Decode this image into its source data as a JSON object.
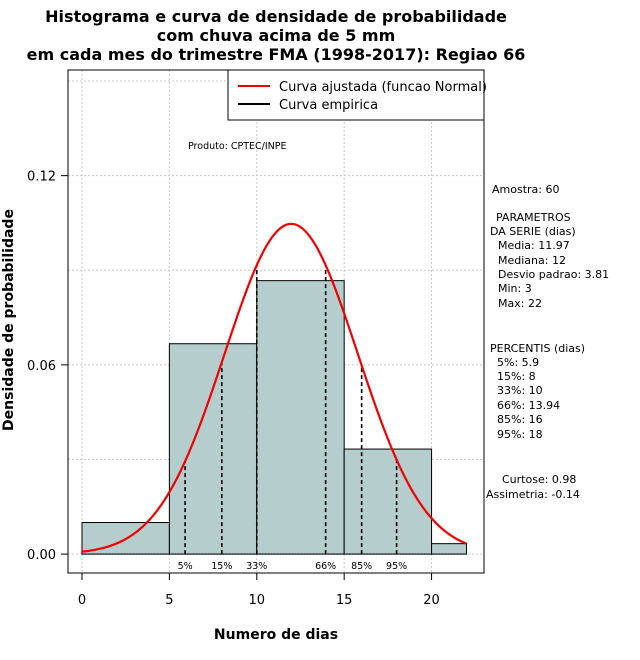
{
  "chart_data": {
    "type": "histogram",
    "title": [
      "Histograma e curva de densidade de probabilidade",
      "com chuva acima de 5 mm",
      "em cada mes do trimestre FMA (1998-2017): Regiao 66"
    ],
    "xlabel": "Numero de dias",
    "ylabel": "Densidade de probabilidade",
    "xlim": [
      -0.8,
      23
    ],
    "ylim": [
      -0.006,
      0.1535
    ],
    "x_ticks": [
      0,
      5,
      10,
      15,
      20
    ],
    "y_ticks": [
      0.0,
      0.06,
      0.12
    ],
    "y_tick_labels": [
      "0.00",
      "0.06",
      "0.12"
    ],
    "grid": true,
    "bins": [
      {
        "from": 0,
        "to": 5,
        "density": 0.01
      },
      {
        "from": 5,
        "to": 10,
        "density": 0.0667
      },
      {
        "from": 10,
        "to": 15,
        "density": 0.0867
      },
      {
        "from": 15,
        "to": 20,
        "density": 0.0333
      },
      {
        "from": 20,
        "to": 22,
        "density": 0.0033
      }
    ],
    "normal_fit": {
      "mean": 11.97,
      "sd": 3.81,
      "x_from": 0,
      "x_to": 22
    },
    "percentile_markers": [
      {
        "x": 5.9,
        "label": "5%"
      },
      {
        "x": 8,
        "label": "15%"
      },
      {
        "x": 10,
        "label": "33%"
      },
      {
        "x": 13.94,
        "label": "66%"
      },
      {
        "x": 16,
        "label": "85%"
      },
      {
        "x": 18,
        "label": "95%"
      }
    ],
    "legend": {
      "placement": "top-right",
      "entries": [
        {
          "label": "Curva ajustada (funcao Normal)",
          "color": "#ee0000"
        },
        {
          "label": "Curva empirica",
          "color": "#000000"
        }
      ]
    },
    "product_note": "Produto: CPTEC/INPE"
  },
  "stats": {
    "sample": "Amostra: 60",
    "params_title_1": "PARAMETROS",
    "params_title_2": "DA SERIE (dias)",
    "params": [
      "Media: 11.97",
      "Mediana: 12",
      "Desvio padrao: 3.81",
      "Min: 3",
      "Max: 22"
    ],
    "percentis_title": "PERCENTIS (dias)",
    "percentis": [
      "5%: 5.9",
      "15%: 8",
      "33%: 10",
      "66%: 13.94",
      "85%: 16",
      "95%: 18"
    ],
    "curtose": "Curtose: 0.98",
    "assimetria": "Assimetria: -0.14"
  },
  "colors": {
    "bar_fill": "#b5cecd",
    "curve": "#ee0000",
    "grid": "#c8c8c8"
  }
}
